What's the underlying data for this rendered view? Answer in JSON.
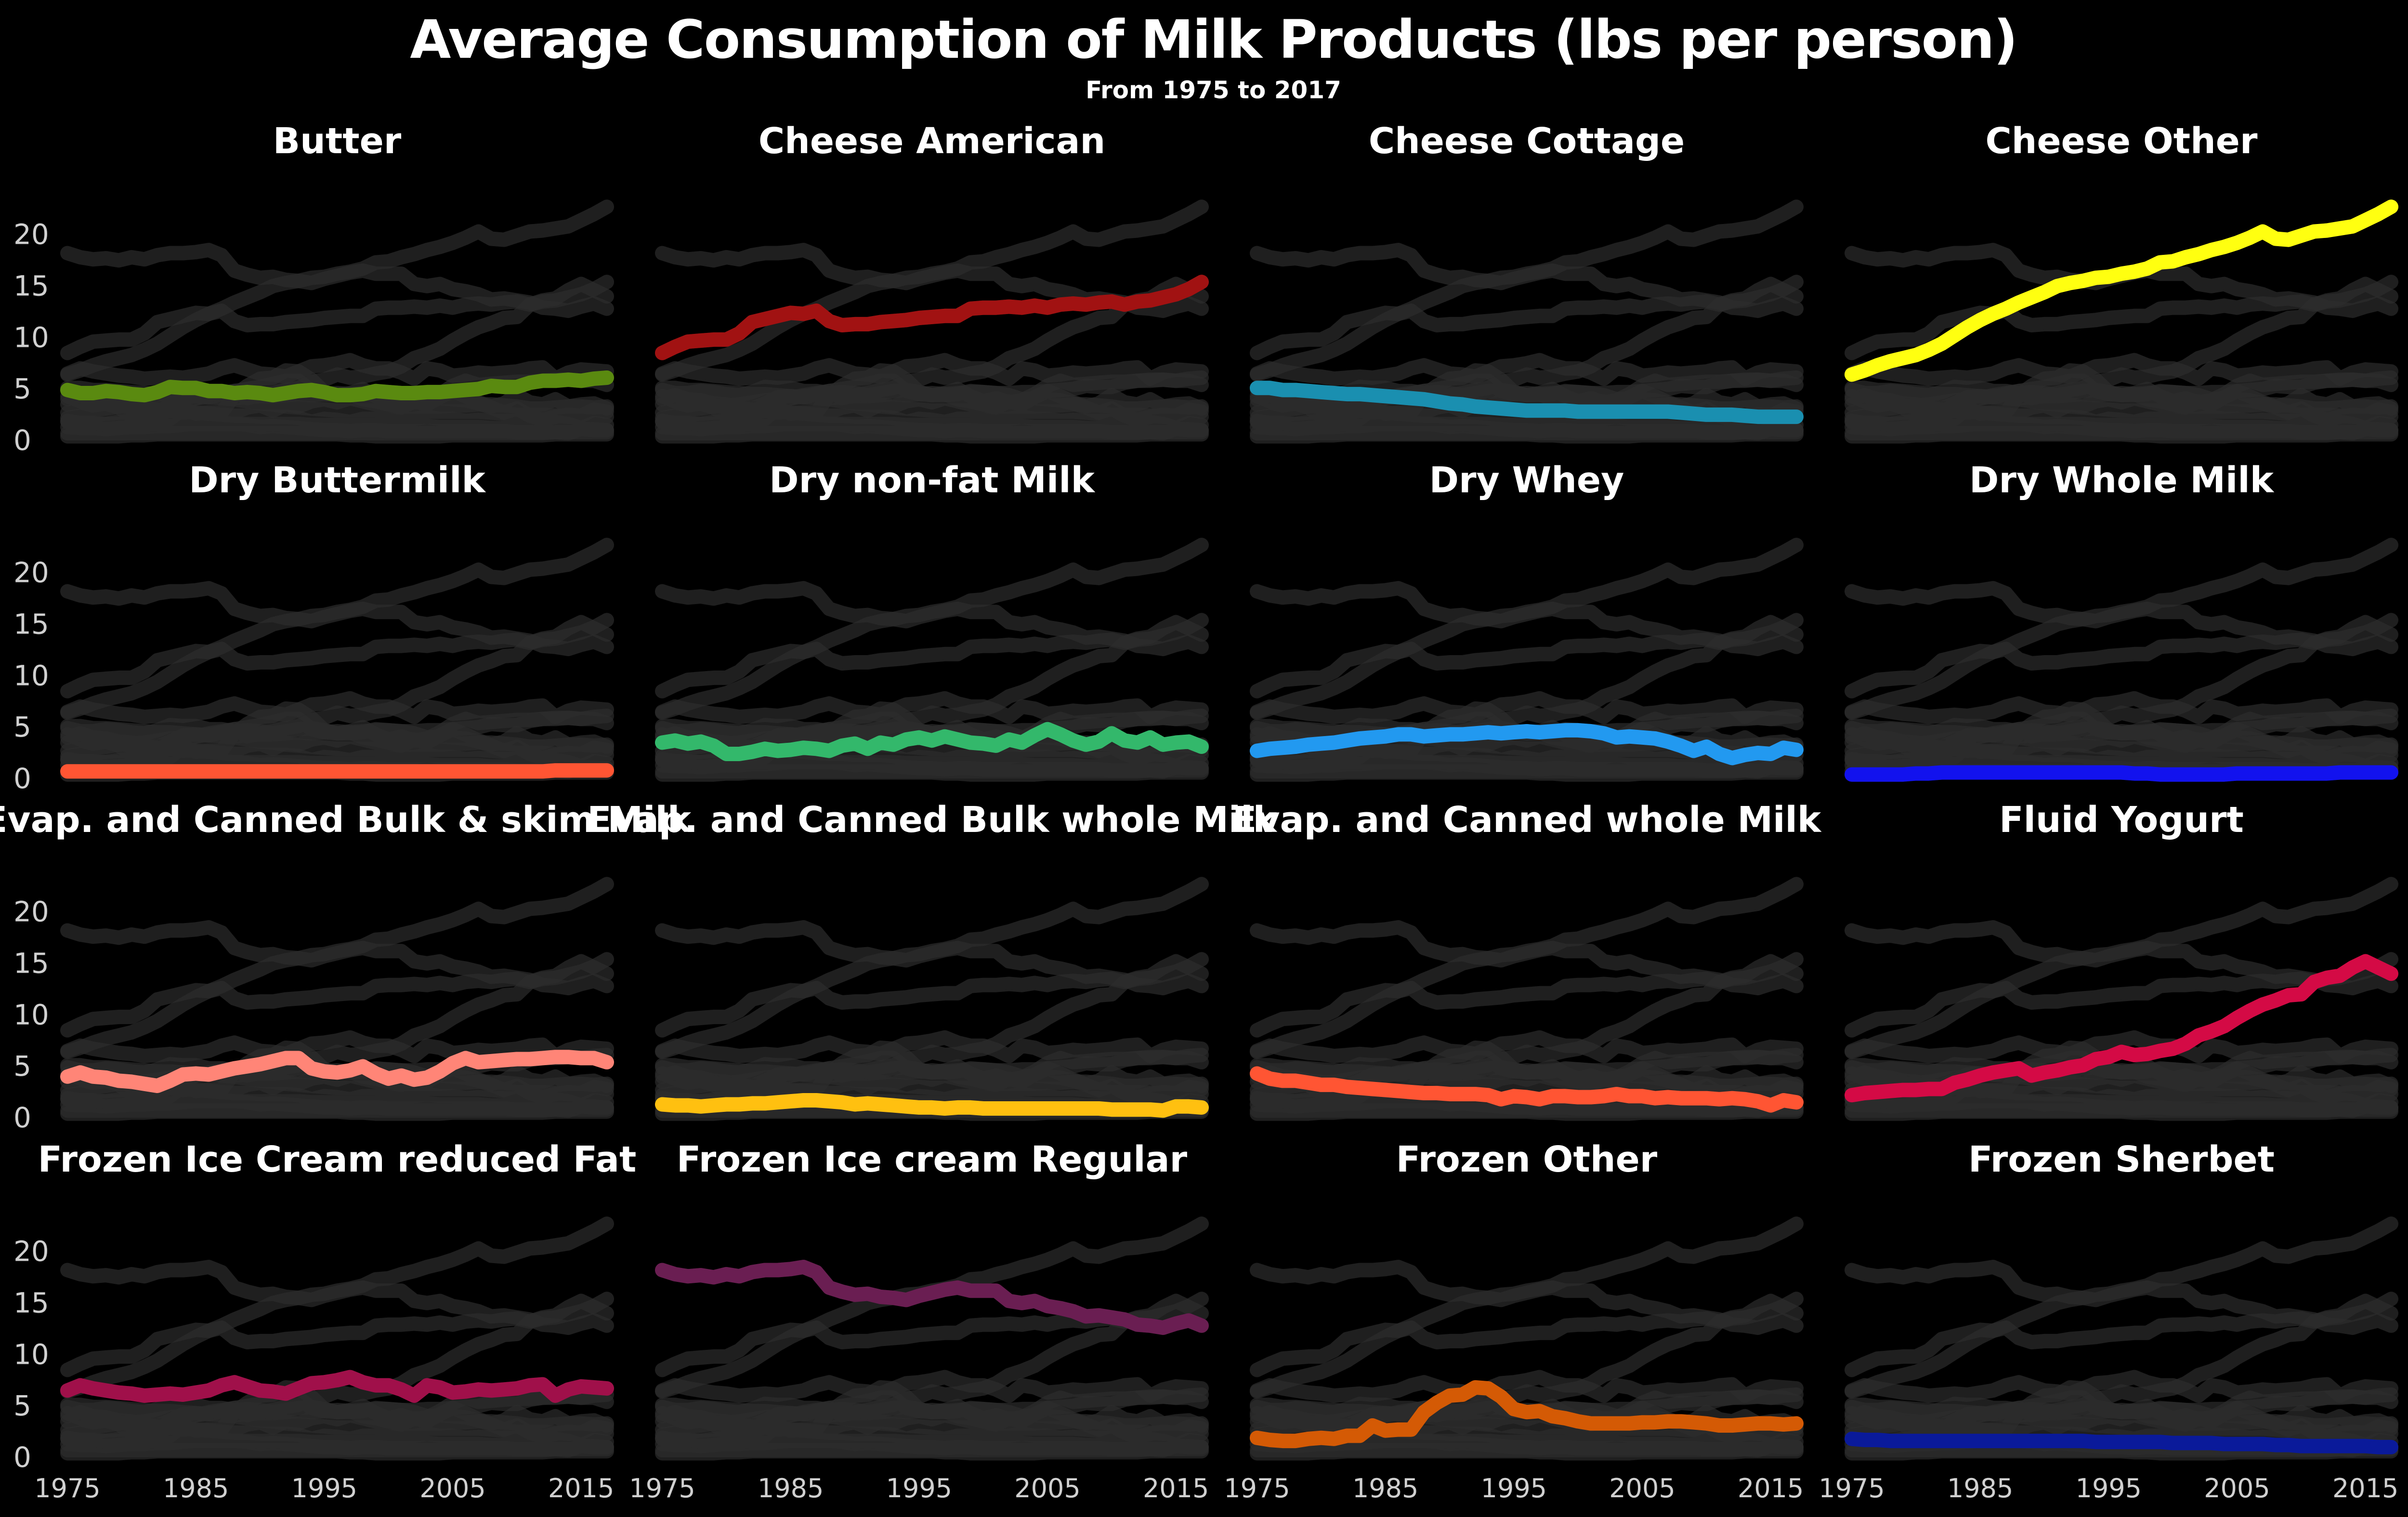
{
  "title": "Average Consumption of Milk Products (lbs per person)",
  "subtitle": "From 1975 to 2017",
  "chart_data": [
    {
      "type": "line",
      "title": "Butter",
      "color": "#5a8a10",
      "x_range": [
        1975,
        2017
      ],
      "ylim": [
        0,
        22
      ],
      "yticks": [
        0,
        5,
        10,
        15,
        20
      ],
      "xticks": [
        1975,
        1985,
        1995,
        2005,
        2015
      ],
      "values": [
        4.7,
        4.4,
        4.4,
        4.6,
        4.5,
        4.3,
        4.2,
        4.5,
        5.0,
        4.9,
        4.9,
        4.6,
        4.6,
        4.4,
        4.5,
        4.4,
        4.2,
        4.4,
        4.6,
        4.7,
        4.5,
        4.2,
        4.2,
        4.3,
        4.6,
        4.5,
        4.4,
        4.4,
        4.5,
        4.5,
        4.6,
        4.7,
        4.8,
        5.1,
        5.0,
        5.0,
        5.4,
        5.6,
        5.6,
        5.7,
        5.6,
        5.8,
        5.9
      ]
    },
    {
      "type": "line",
      "title": "Cheese American",
      "color": "#a11212",
      "x_range": [
        1975,
        2017
      ],
      "ylim": [
        0,
        22
      ],
      "yticks": [
        0,
        5,
        10,
        15,
        20
      ],
      "xticks": [
        1975,
        1985,
        1995,
        2005,
        2015
      ],
      "values": [
        8.3,
        8.9,
        9.4,
        9.5,
        9.6,
        9.6,
        10.2,
        11.3,
        11.6,
        11.9,
        12.2,
        12.1,
        12.4,
        11.4,
        11.0,
        11.1,
        11.1,
        11.3,
        11.4,
        11.5,
        11.7,
        11.8,
        11.9,
        11.9,
        12.6,
        12.7,
        12.7,
        12.8,
        12.7,
        12.9,
        12.7,
        13.0,
        13.1,
        13.0,
        13.2,
        13.3,
        13.0,
        13.3,
        13.4,
        13.7,
        14.0,
        14.5,
        15.2
      ]
    },
    {
      "type": "line",
      "title": "Cheese Cottage",
      "color": "#1a8fb0",
      "x_range": [
        1975,
        2017
      ],
      "ylim": [
        0,
        22
      ],
      "yticks": [
        0,
        5,
        10,
        15,
        20
      ],
      "xticks": [
        1975,
        1985,
        1995,
        2005,
        2015
      ],
      "values": [
        4.9,
        4.9,
        4.7,
        4.7,
        4.6,
        4.5,
        4.4,
        4.3,
        4.3,
        4.2,
        4.1,
        4.0,
        3.9,
        3.8,
        3.6,
        3.4,
        3.3,
        3.1,
        3.0,
        2.9,
        2.8,
        2.7,
        2.7,
        2.7,
        2.7,
        2.6,
        2.6,
        2.6,
        2.6,
        2.6,
        2.6,
        2.6,
        2.6,
        2.5,
        2.4,
        2.3,
        2.3,
        2.3,
        2.2,
        2.1,
        2.1,
        2.1,
        2.1
      ]
    },
    {
      "type": "line",
      "title": "Cheese Other",
      "color": "#ffff10",
      "x_range": [
        1975,
        2017
      ],
      "ylim": [
        0,
        22
      ],
      "yticks": [
        0,
        5,
        10,
        15,
        20
      ],
      "xticks": [
        1975,
        1985,
        1995,
        2005,
        2015
      ],
      "values": [
        6.2,
        6.6,
        7.1,
        7.5,
        7.8,
        8.1,
        8.6,
        9.2,
        10.0,
        10.8,
        11.5,
        12.1,
        12.6,
        13.2,
        13.7,
        14.2,
        14.8,
        15.1,
        15.3,
        15.6,
        15.7,
        16.0,
        16.2,
        16.5,
        17.1,
        17.2,
        17.6,
        17.9,
        18.3,
        18.6,
        19.0,
        19.5,
        20.1,
        19.4,
        19.3,
        19.7,
        20.1,
        20.2,
        20.4,
        20.6,
        21.2,
        21.8,
        22.5
      ]
    },
    {
      "type": "line",
      "title": "Dry Buttermilk",
      "color": "#ff5533",
      "x_range": [
        1975,
        2017
      ],
      "ylim": [
        0,
        22
      ],
      "yticks": [
        0,
        5,
        10,
        15,
        20
      ],
      "xticks": [
        1975,
        1985,
        1995,
        2005,
        2015
      ],
      "values": [
        0.5,
        0.5,
        0.5,
        0.5,
        0.5,
        0.5,
        0.5,
        0.5,
        0.5,
        0.5,
        0.5,
        0.5,
        0.5,
        0.5,
        0.5,
        0.5,
        0.5,
        0.5,
        0.5,
        0.5,
        0.5,
        0.5,
        0.5,
        0.5,
        0.5,
        0.5,
        0.5,
        0.5,
        0.5,
        0.5,
        0.5,
        0.5,
        0.5,
        0.5,
        0.5,
        0.5,
        0.5,
        0.5,
        0.6,
        0.6,
        0.6,
        0.6,
        0.6
      ]
    },
    {
      "type": "line",
      "title": "Dry non-fat Milk",
      "color": "#33b86b",
      "x_range": [
        1975,
        2017
      ],
      "ylim": [
        0,
        22
      ],
      "yticks": [
        0,
        5,
        10,
        15,
        20
      ],
      "xticks": [
        1975,
        1985,
        1995,
        2005,
        2015
      ],
      "values": [
        3.3,
        3.5,
        3.2,
        3.4,
        3.0,
        2.2,
        2.2,
        2.4,
        2.7,
        2.5,
        2.6,
        2.8,
        2.7,
        2.5,
        3.0,
        3.2,
        2.7,
        3.3,
        3.1,
        3.6,
        3.8,
        3.5,
        3.9,
        3.6,
        3.3,
        3.2,
        3.0,
        3.6,
        3.3,
        4.0,
        4.6,
        4.1,
        3.5,
        3.1,
        3.4,
        4.2,
        3.5,
        3.3,
        3.8,
        3.1,
        3.3,
        3.4,
        2.9
      ]
    },
    {
      "type": "line",
      "title": "Dry Whey",
      "color": "#2299f0",
      "x_range": [
        1975,
        2017
      ],
      "ylim": [
        0,
        22
      ],
      "yticks": [
        0,
        5,
        10,
        15,
        20
      ],
      "xticks": [
        1975,
        1985,
        1995,
        2005,
        2015
      ],
      "values": [
        2.5,
        2.7,
        2.8,
        2.9,
        3.1,
        3.2,
        3.3,
        3.5,
        3.7,
        3.8,
        3.9,
        4.1,
        4.1,
        3.9,
        4.0,
        4.1,
        4.1,
        4.2,
        4.3,
        4.2,
        4.3,
        4.4,
        4.3,
        4.4,
        4.5,
        4.5,
        4.4,
        4.2,
        3.8,
        3.9,
        3.8,
        3.7,
        3.4,
        3.0,
        2.5,
        2.9,
        2.2,
        1.8,
        2.1,
        2.3,
        2.2,
        2.8,
        2.6
      ]
    },
    {
      "type": "line",
      "title": "Dry Whole Milk",
      "color": "#1212ee",
      "x_range": [
        1975,
        2017
      ],
      "ylim": [
        0,
        22
      ],
      "yticks": [
        0,
        5,
        10,
        15,
        20
      ],
      "xticks": [
        1975,
        1985,
        1995,
        2005,
        2015
      ],
      "values": [
        0.2,
        0.2,
        0.2,
        0.2,
        0.2,
        0.3,
        0.3,
        0.4,
        0.4,
        0.4,
        0.4,
        0.4,
        0.4,
        0.4,
        0.4,
        0.4,
        0.4,
        0.4,
        0.4,
        0.4,
        0.4,
        0.4,
        0.3,
        0.3,
        0.2,
        0.2,
        0.2,
        0.2,
        0.2,
        0.2,
        0.3,
        0.3,
        0.3,
        0.3,
        0.3,
        0.3,
        0.3,
        0.3,
        0.4,
        0.4,
        0.4,
        0.4,
        0.4
      ]
    },
    {
      "type": "line",
      "title": "Evap. and Canned Bulk & skim Milk",
      "color": "#ff8577",
      "x_range": [
        1975,
        2017
      ],
      "ylim": [
        0,
        22
      ],
      "yticks": [
        0,
        5,
        10,
        15,
        20
      ],
      "xticks": [
        1975,
        1985,
        1995,
        2005,
        2015
      ],
      "values": [
        3.8,
        4.2,
        3.8,
        3.7,
        3.4,
        3.3,
        3.1,
        2.9,
        3.4,
        4.0,
        4.1,
        4.0,
        4.3,
        4.6,
        4.8,
        5.0,
        5.3,
        5.6,
        5.6,
        4.6,
        4.3,
        4.2,
        4.4,
        4.8,
        4.1,
        3.6,
        3.9,
        3.5,
        3.7,
        4.3,
        5.1,
        5.6,
        5.2,
        5.3,
        5.4,
        5.5,
        5.5,
        5.6,
        5.7,
        5.7,
        5.6,
        5.6,
        5.2
      ]
    },
    {
      "type": "line",
      "title": "Evap. and Canned Bulk whole Milk",
      "color": "#ffc010",
      "x_range": [
        1975,
        2017
      ],
      "ylim": [
        0,
        22
      ],
      "yticks": [
        0,
        5,
        10,
        15,
        20
      ],
      "xticks": [
        1975,
        1985,
        1995,
        2005,
        2015
      ],
      "values": [
        1.1,
        1.0,
        1.0,
        0.9,
        1.0,
        1.1,
        1.1,
        1.2,
        1.2,
        1.3,
        1.4,
        1.5,
        1.5,
        1.4,
        1.3,
        1.1,
        1.2,
        1.1,
        1.0,
        0.9,
        0.8,
        0.8,
        0.7,
        0.8,
        0.8,
        0.7,
        0.7,
        0.7,
        0.7,
        0.7,
        0.7,
        0.7,
        0.7,
        0.7,
        0.7,
        0.6,
        0.6,
        0.6,
        0.6,
        0.5,
        0.9,
        0.9,
        0.8
      ]
    },
    {
      "type": "line",
      "title": "Evap. and Canned whole Milk",
      "color": "#ff5533",
      "x_range": [
        1975,
        2017
      ],
      "ylim": [
        0,
        22
      ],
      "yticks": [
        0,
        5,
        10,
        15,
        20
      ],
      "xticks": [
        1975,
        1985,
        1995,
        2005,
        2015
      ],
      "values": [
        4.1,
        3.6,
        3.4,
        3.4,
        3.2,
        3.0,
        3.0,
        2.8,
        2.7,
        2.6,
        2.5,
        2.4,
        2.3,
        2.2,
        2.2,
        2.1,
        2.1,
        2.1,
        2.0,
        1.6,
        1.9,
        1.8,
        1.6,
        1.9,
        1.9,
        1.8,
        1.8,
        1.9,
        2.1,
        1.9,
        1.9,
        1.7,
        1.8,
        1.7,
        1.7,
        1.7,
        1.6,
        1.7,
        1.6,
        1.4,
        1.0,
        1.5,
        1.3
      ]
    },
    {
      "type": "line",
      "title": "Fluid Yogurt",
      "color": "#d40a45",
      "x_range": [
        1975,
        2017
      ],
      "ylim": [
        0,
        22
      ],
      "yticks": [
        0,
        5,
        10,
        15,
        20
      ],
      "xticks": [
        1975,
        1985,
        1995,
        2005,
        2015
      ],
      "values": [
        2.0,
        2.2,
        2.3,
        2.4,
        2.5,
        2.5,
        2.6,
        2.6,
        3.2,
        3.5,
        3.9,
        4.2,
        4.4,
        4.6,
        3.9,
        4.2,
        4.4,
        4.7,
        4.9,
        5.5,
        5.7,
        6.2,
        5.9,
        6.0,
        6.3,
        6.5,
        7.0,
        7.8,
        8.2,
        8.7,
        9.5,
        10.2,
        10.8,
        11.2,
        11.7,
        11.8,
        13.0,
        13.4,
        13.6,
        14.4,
        15.0,
        14.4,
        13.8
      ]
    },
    {
      "type": "line",
      "title": "Frozen Ice Cream reduced Fat",
      "color": "#a0104a",
      "x_range": [
        1975,
        2017
      ],
      "ylim": [
        0,
        22
      ],
      "yticks": [
        0,
        5,
        10,
        15,
        20
      ],
      "xticks": [
        1975,
        1985,
        1995,
        2005,
        2015
      ],
      "values": [
        6.3,
        6.8,
        6.5,
        6.3,
        6.1,
        6.0,
        5.8,
        5.9,
        6.0,
        5.9,
        6.1,
        6.3,
        6.8,
        7.1,
        6.7,
        6.3,
        6.2,
        6.0,
        6.5,
        7.0,
        7.1,
        7.3,
        7.6,
        7.1,
        6.8,
        6.8,
        6.4,
        5.8,
        6.8,
        6.6,
        6.1,
        6.2,
        6.4,
        6.3,
        6.4,
        6.5,
        6.8,
        6.9,
        5.8,
        6.4,
        6.7,
        6.6,
        6.5
      ]
    },
    {
      "type": "line",
      "title": "Frozen Ice cream Regular",
      "color": "#6a1e52",
      "x_range": [
        1975,
        2017
      ],
      "ylim": [
        0,
        22
      ],
      "yticks": [
        0,
        5,
        10,
        15,
        20
      ],
      "xticks": [
        1975,
        1985,
        1995,
        2005,
        2015
      ],
      "values": [
        18.0,
        17.6,
        17.4,
        17.5,
        17.3,
        17.6,
        17.4,
        17.8,
        18.0,
        18.0,
        18.1,
        18.3,
        17.8,
        16.3,
        15.9,
        15.6,
        15.7,
        15.4,
        15.3,
        15.1,
        15.5,
        15.8,
        16.1,
        16.3,
        16.0,
        16.0,
        16.0,
        15.0,
        14.8,
        15.0,
        14.5,
        14.3,
        14.0,
        13.5,
        13.6,
        13.4,
        13.2,
        12.7,
        12.6,
        12.4,
        12.8,
        13.1,
        12.6
      ]
    },
    {
      "type": "line",
      "title": "Frozen Other",
      "color": "#d45a05",
      "x_range": [
        1975,
        2017
      ],
      "ylim": [
        0,
        22
      ],
      "yticks": [
        0,
        5,
        10,
        15,
        20
      ],
      "xticks": [
        1975,
        1985,
        1995,
        2005,
        2015
      ],
      "values": [
        1.7,
        1.5,
        1.4,
        1.4,
        1.6,
        1.7,
        1.6,
        1.9,
        1.9,
        2.9,
        2.4,
        2.5,
        2.5,
        4.2,
        5.1,
        5.8,
        5.9,
        6.6,
        6.5,
        5.7,
        4.5,
        4.2,
        4.3,
        3.8,
        3.6,
        3.3,
        3.1,
        3.1,
        3.1,
        3.1,
        3.2,
        3.2,
        3.3,
        3.3,
        3.2,
        3.1,
        2.9,
        2.9,
        3.0,
        3.1,
        3.1,
        3.0,
        3.1
      ]
    },
    {
      "type": "line",
      "title": "Frozen Sherbet",
      "color": "#0a1a9a",
      "x_range": [
        1975,
        2017
      ],
      "ylim": [
        0,
        22
      ],
      "yticks": [
        0,
        5,
        10,
        15,
        20
      ],
      "xticks": [
        1975,
        1985,
        1995,
        2005,
        2015
      ],
      "values": [
        1.6,
        1.5,
        1.5,
        1.4,
        1.4,
        1.4,
        1.4,
        1.4,
        1.4,
        1.4,
        1.4,
        1.4,
        1.4,
        1.4,
        1.4,
        1.4,
        1.4,
        1.4,
        1.4,
        1.3,
        1.3,
        1.3,
        1.3,
        1.3,
        1.3,
        1.2,
        1.2,
        1.2,
        1.2,
        1.1,
        1.1,
        1.1,
        1.1,
        1.0,
        1.0,
        0.9,
        0.9,
        0.9,
        0.9,
        0.9,
        0.9,
        0.8,
        0.8
      ]
    }
  ]
}
